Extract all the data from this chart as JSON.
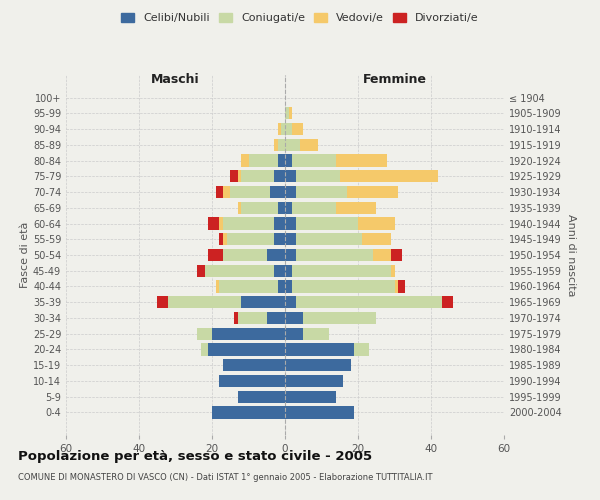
{
  "age_groups": [
    "0-4",
    "5-9",
    "10-14",
    "15-19",
    "20-24",
    "25-29",
    "30-34",
    "35-39",
    "40-44",
    "45-49",
    "50-54",
    "55-59",
    "60-64",
    "65-69",
    "70-74",
    "75-79",
    "80-84",
    "85-89",
    "90-94",
    "95-99",
    "100+"
  ],
  "birth_years": [
    "2000-2004",
    "1995-1999",
    "1990-1994",
    "1985-1989",
    "1980-1984",
    "1975-1979",
    "1970-1974",
    "1965-1969",
    "1960-1964",
    "1955-1959",
    "1950-1954",
    "1945-1949",
    "1940-1944",
    "1935-1939",
    "1930-1934",
    "1925-1929",
    "1920-1924",
    "1915-1919",
    "1910-1914",
    "1905-1909",
    "≤ 1904"
  ],
  "colors": {
    "celibi": "#3d6a9e",
    "coniugati": "#c8d9a5",
    "vedovi": "#f5c96a",
    "divorziati": "#cc2222"
  },
  "maschi": {
    "celibi": [
      20,
      13,
      18,
      17,
      21,
      20,
      5,
      12,
      2,
      3,
      5,
      3,
      3,
      2,
      4,
      3,
      2,
      0,
      0,
      0,
      0
    ],
    "coniugati": [
      0,
      0,
      0,
      0,
      2,
      4,
      8,
      20,
      16,
      19,
      12,
      13,
      14,
      10,
      11,
      9,
      8,
      2,
      1,
      0,
      0
    ],
    "vedovi": [
      0,
      0,
      0,
      0,
      0,
      0,
      0,
      0,
      1,
      0,
      0,
      1,
      1,
      1,
      2,
      1,
      2,
      1,
      1,
      0,
      0
    ],
    "divorziati": [
      0,
      0,
      0,
      0,
      0,
      0,
      1,
      3,
      0,
      2,
      4,
      1,
      3,
      0,
      2,
      2,
      0,
      0,
      0,
      0,
      0
    ]
  },
  "femmine": {
    "celibi": [
      19,
      14,
      16,
      18,
      19,
      5,
      5,
      3,
      2,
      2,
      3,
      3,
      3,
      2,
      3,
      3,
      2,
      0,
      0,
      0,
      0
    ],
    "coniugati": [
      0,
      0,
      0,
      0,
      4,
      7,
      20,
      40,
      28,
      27,
      21,
      18,
      17,
      12,
      14,
      12,
      12,
      4,
      2,
      1,
      0
    ],
    "vedovi": [
      0,
      0,
      0,
      0,
      0,
      0,
      0,
      0,
      1,
      1,
      5,
      8,
      10,
      11,
      14,
      27,
      14,
      5,
      3,
      1,
      0
    ],
    "divorziati": [
      0,
      0,
      0,
      0,
      0,
      0,
      0,
      3,
      2,
      0,
      3,
      0,
      0,
      0,
      0,
      0,
      0,
      0,
      0,
      0,
      0
    ]
  },
  "title": "Popolazione per età, sesso e stato civile - 2005",
  "subtitle": "COMUNE DI MONASTERO DI VASCO (CN) - Dati ISTAT 1° gennaio 2005 - Elaborazione TUTTITALIA.IT",
  "xlabel_left": "Maschi",
  "xlabel_right": "Femmine",
  "ylabel_left": "Fasce di età",
  "ylabel_right": "Anni di nascita",
  "xlim": 60,
  "legend_labels": [
    "Celibi/Nubili",
    "Coniugati/e",
    "Vedovi/e",
    "Divorziati/e"
  ],
  "bg_color": "#f0f0eb",
  "grid_color": "#cccccc"
}
